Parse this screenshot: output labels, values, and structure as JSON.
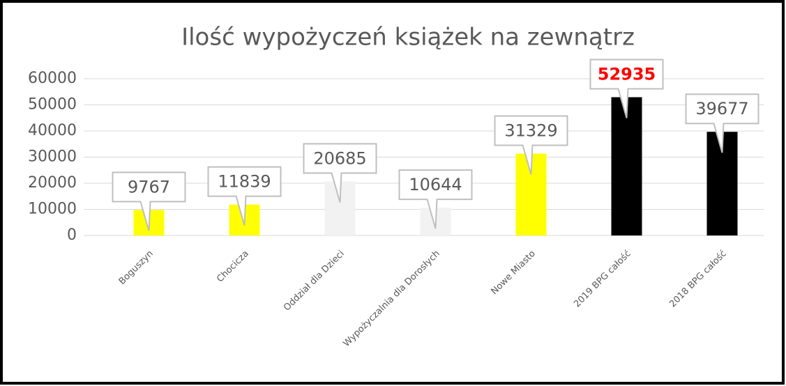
{
  "chart_data": {
    "type": "bar",
    "title": "Ilość wypożyczeń książek na zewnątrz",
    "categories": [
      "Boguszyn",
      "Chocicza",
      "Oddział dla Dzieci",
      "Wypożyczalnia dla Dorosłych",
      "Nowe Miasto",
      "2019 BPG całość",
      "2018 BPG całość"
    ],
    "values": [
      9767,
      11839,
      20685,
      10644,
      31329,
      52935,
      39677
    ],
    "colors": [
      "#ffff00",
      "#ffff00",
      "#f2f2f2",
      "#f2f2f2",
      "#ffff00",
      "#000000",
      "#000000"
    ],
    "label_colors": [
      "#595959",
      "#595959",
      "#595959",
      "#595959",
      "#595959",
      "#ff0000",
      "#595959"
    ],
    "ylim": [
      0,
      60000
    ],
    "yticks": [
      0,
      10000,
      20000,
      30000,
      40000,
      50000,
      60000
    ],
    "grid": true
  }
}
